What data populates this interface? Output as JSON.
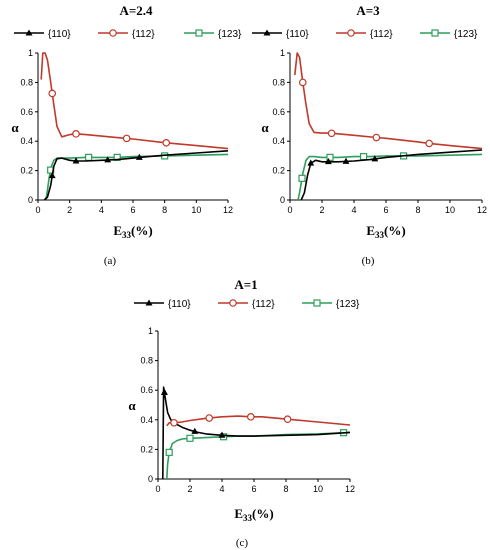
{
  "chart_data": [
    {
      "type": "line",
      "title": "A=2.4",
      "caption": "(a)",
      "xlabel": "E",
      "xlabel_sub": "33",
      "xlabel_suffix": "(%)",
      "ylabel": "α",
      "xlim": [
        0,
        12
      ],
      "ylim": [
        0,
        1
      ],
      "xticks": [
        0,
        2,
        4,
        6,
        8,
        10,
        12
      ],
      "yticks": [
        0,
        0.2,
        0.4,
        0.6,
        0.8,
        1
      ],
      "grid": "none",
      "legend_position": "top",
      "series": [
        {
          "name": "{110}",
          "color": "#000000",
          "marker": "triangle",
          "x": [
            0.4,
            0.6,
            0.8,
            1.0,
            1.2,
            1.5,
            2.0,
            2.4,
            3.0,
            4.0,
            5.0,
            6.0,
            7.0,
            8.0,
            10.0,
            12.0
          ],
          "y": [
            0.0,
            0.02,
            0.1,
            0.23,
            0.28,
            0.285,
            0.27,
            0.265,
            0.265,
            0.27,
            0.275,
            0.285,
            0.295,
            0.305,
            0.32,
            0.335
          ],
          "markers_x": [
            0.9,
            2.4,
            4.4,
            6.4
          ]
        },
        {
          "name": "{112}",
          "color": "#C0392B",
          "marker": "circle",
          "x": [
            0.2,
            0.3,
            0.45,
            0.6,
            0.8,
            1.0,
            1.2,
            1.5,
            2.0,
            2.4,
            3.0,
            4.0,
            5.5,
            6.0,
            8.0,
            10.0,
            12.0
          ],
          "y": [
            0.82,
            1.0,
            1.0,
            0.95,
            0.8,
            0.65,
            0.5,
            0.43,
            0.445,
            0.45,
            0.445,
            0.435,
            0.42,
            0.415,
            0.39,
            0.37,
            0.35
          ],
          "markers_x": [
            0.9,
            2.4,
            5.6,
            8.1
          ]
        },
        {
          "name": "{123}",
          "color": "#2E9E5B",
          "marker": "square",
          "x": [
            0.45,
            0.55,
            0.7,
            0.85,
            1.0,
            1.2,
            1.5,
            2.0,
            3.0,
            4.0,
            5.0,
            6.0,
            8.0,
            10.0,
            12.0
          ],
          "y": [
            0.0,
            0.03,
            0.15,
            0.23,
            0.27,
            0.285,
            0.285,
            0.285,
            0.29,
            0.29,
            0.29,
            0.295,
            0.3,
            0.305,
            0.31
          ],
          "markers_x": [
            0.8,
            3.2,
            5.0,
            8.0
          ]
        }
      ]
    },
    {
      "type": "line",
      "title": "A=3",
      "caption": "(b)",
      "xlabel": "E",
      "xlabel_sub": "33",
      "xlabel_suffix": "(%)",
      "ylabel": "α",
      "xlim": [
        0,
        12
      ],
      "ylim": [
        0,
        1
      ],
      "xticks": [
        0,
        2,
        4,
        6,
        8,
        10,
        12
      ],
      "yticks": [
        0,
        0.2,
        0.4,
        0.6,
        0.8,
        1
      ],
      "grid": "none",
      "legend_position": "top",
      "series": [
        {
          "name": "{110}",
          "color": "#000000",
          "marker": "triangle",
          "x": [
            0.7,
            0.9,
            1.1,
            1.3,
            1.6,
            2.0,
            2.5,
            3.0,
            4.0,
            5.0,
            6.0,
            8.0,
            10.0,
            12.0
          ],
          "y": [
            0.0,
            0.05,
            0.17,
            0.25,
            0.27,
            0.26,
            0.26,
            0.26,
            0.265,
            0.275,
            0.29,
            0.31,
            0.325,
            0.34
          ],
          "markers_x": [
            1.3,
            2.4,
            3.5,
            5.3
          ]
        },
        {
          "name": "{112}",
          "color": "#C0392B",
          "marker": "circle",
          "x": [
            0.3,
            0.45,
            0.6,
            0.8,
            1.0,
            1.2,
            1.5,
            2.0,
            2.5,
            3.0,
            4.0,
            5.4,
            6.0,
            8.0,
            8.7,
            10.0,
            12.0
          ],
          "y": [
            0.85,
            1.0,
            0.97,
            0.8,
            0.65,
            0.52,
            0.46,
            0.455,
            0.455,
            0.45,
            0.44,
            0.425,
            0.42,
            0.395,
            0.385,
            0.37,
            0.35
          ],
          "markers_x": [
            0.8,
            2.6,
            5.4,
            8.7
          ]
        },
        {
          "name": "{123}",
          "color": "#2E9E5B",
          "marker": "square",
          "x": [
            0.5,
            0.6,
            0.8,
            1.0,
            1.2,
            1.5,
            2.0,
            3.0,
            4.0,
            5.0,
            6.0,
            8.0,
            10.0,
            12.0
          ],
          "y": [
            0.0,
            0.05,
            0.18,
            0.27,
            0.295,
            0.295,
            0.29,
            0.29,
            0.295,
            0.295,
            0.3,
            0.3,
            0.305,
            0.31
          ],
          "markers_x": [
            0.75,
            2.5,
            4.6,
            7.1
          ]
        }
      ]
    },
    {
      "type": "line",
      "title": "A=1",
      "caption": "(c)",
      "xlabel": "E",
      "xlabel_sub": "33",
      "xlabel_suffix": "(%)",
      "ylabel": "α",
      "xlim": [
        0,
        12
      ],
      "ylim": [
        0,
        1
      ],
      "xticks": [
        0,
        2,
        4,
        6,
        8,
        10,
        12
      ],
      "yticks": [
        0,
        0.2,
        0.4,
        0.6,
        0.8,
        1
      ],
      "grid": "none",
      "legend_position": "top",
      "series": [
        {
          "name": "{110}",
          "color": "#000000",
          "marker": "triangle",
          "x": [
            0.3,
            0.35,
            0.45,
            0.6,
            0.8,
            1.0,
            1.5,
            2.0,
            2.5,
            3.0,
            4.0,
            5.0,
            6.0,
            8.0,
            10.0,
            12.0
          ],
          "y": [
            0.0,
            0.62,
            0.55,
            0.45,
            0.4,
            0.38,
            0.35,
            0.33,
            0.315,
            0.305,
            0.295,
            0.29,
            0.29,
            0.295,
            0.3,
            0.315
          ],
          "markers_x": [
            0.4,
            0.4,
            2.3,
            4.0
          ]
        },
        {
          "name": "{112}",
          "color": "#C0392B",
          "marker": "circle",
          "x": [
            0.55,
            0.7,
            1.0,
            1.5,
            2.0,
            3.0,
            4.0,
            5.0,
            5.8,
            6.5,
            8.0,
            10.0,
            12.0
          ],
          "y": [
            0.36,
            0.38,
            0.38,
            0.385,
            0.395,
            0.41,
            0.42,
            0.425,
            0.42,
            0.42,
            0.405,
            0.385,
            0.365
          ],
          "markers_x": [
            1.0,
            3.2,
            5.8,
            8.1
          ]
        },
        {
          "name": "{123}",
          "color": "#2E9E5B",
          "marker": "square",
          "x": [
            0.55,
            0.6,
            0.7,
            0.9,
            1.2,
            1.5,
            2.0,
            3.0,
            4.0,
            5.0,
            6.0,
            8.0,
            10.0,
            12.0
          ],
          "y": [
            0.0,
            0.1,
            0.18,
            0.24,
            0.26,
            0.27,
            0.275,
            0.28,
            0.285,
            0.29,
            0.29,
            0.3,
            0.305,
            0.315
          ],
          "markers_x": [
            0.7,
            2.0,
            4.1,
            11.6
          ]
        }
      ]
    }
  ]
}
